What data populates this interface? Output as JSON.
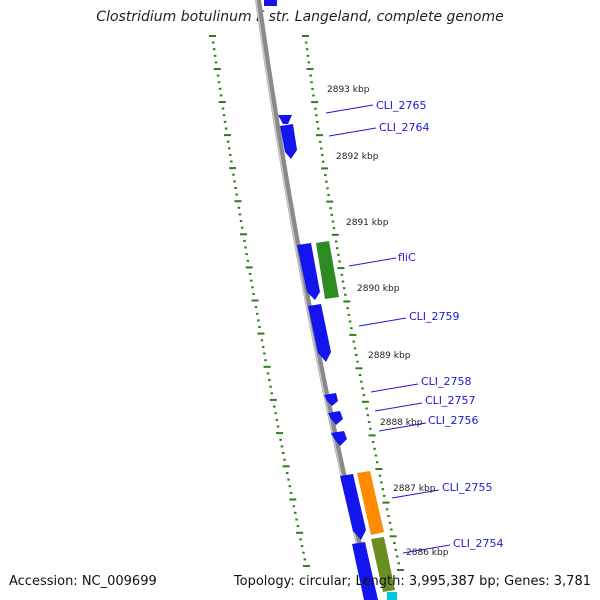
{
  "header": {
    "title": "Clostridium botulinum F str. Langeland, complete genome"
  },
  "footer": {
    "accession": "Accession: NC_009699",
    "summary": "Topology: circular; Length: 3,995,387 bp; Genes: 3,781"
  },
  "colors": {
    "backbone": "#8a8a8a",
    "tick": "#2e7d1e",
    "gene_forward": "#1414f0",
    "gene_green": "#2e8b22",
    "gene_orange": "#ff8c00",
    "gene_olive": "#6b8e23",
    "gene_cyan": "#00c8e0",
    "label": "#1a1ad6"
  },
  "scale": {
    "unit": "kbp",
    "ticks": [
      "2893 kbp",
      "2892 kbp",
      "2891 kbp",
      "2890 kbp",
      "2889 kbp",
      "2888 kbp",
      "2887 kbp",
      "2886 kbp"
    ]
  },
  "genes": [
    {
      "label": "CLI_2765",
      "color": "gene_forward"
    },
    {
      "label": "CLI_2764",
      "color": "gene_forward"
    },
    {
      "label": "fliC",
      "color": "gene_green"
    },
    {
      "label": "CLI_2759",
      "color": "gene_forward"
    },
    {
      "label": "CLI_2758",
      "color": "gene_forward"
    },
    {
      "label": "CLI_2757",
      "color": "gene_forward"
    },
    {
      "label": "CLI_2756",
      "color": "gene_forward"
    },
    {
      "label": "CLI_2755",
      "color": "gene_orange"
    },
    {
      "label": "CLI_2754",
      "color": "gene_olive"
    }
  ]
}
